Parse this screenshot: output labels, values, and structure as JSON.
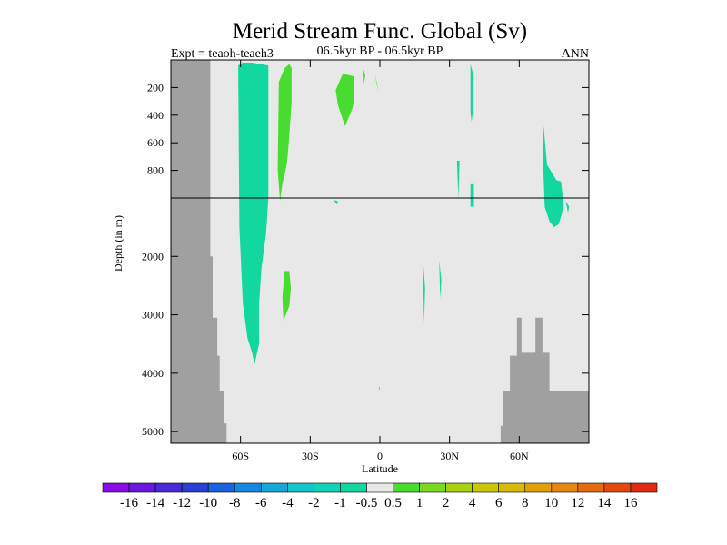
{
  "chart_data": {
    "type": "heatmap",
    "title": "Merid Stream Func. Global (Sv)",
    "subtitle_left": "Expt = teaoh-teaeh3",
    "subtitle_center": "06.5kyr BP - 06.5kyr BP",
    "subtitle_right": "ANN",
    "xlabel": "Latitude",
    "ylabel": "Depth (in m)",
    "xlim": [
      -90,
      90
    ],
    "x_ticks": [
      {
        "value": -60,
        "label": "60S"
      },
      {
        "value": -30,
        "label": "30S"
      },
      {
        "value": 0,
        "label": "0"
      },
      {
        "value": 30,
        "label": "30N"
      },
      {
        "value": 60,
        "label": "60N"
      }
    ],
    "upper_panel": {
      "ylim": [
        0,
        1000
      ],
      "y_ticks": [
        {
          "value": 200,
          "label": "200"
        },
        {
          "value": 400,
          "label": "400"
        },
        {
          "value": 600,
          "label": "600"
        },
        {
          "value": 800,
          "label": "800"
        }
      ]
    },
    "lower_panel": {
      "ylim": [
        1000,
        5200
      ],
      "y_ticks": [
        {
          "value": 2000,
          "label": "2000"
        },
        {
          "value": 3000,
          "label": "3000"
        },
        {
          "value": 4000,
          "label": "4000"
        },
        {
          "value": 5000,
          "label": "5000"
        }
      ]
    },
    "colorbar": {
      "labels": [
        "-16",
        "-14",
        "-12",
        "-10",
        "-8",
        "-6",
        "-4",
        "-2",
        "-1",
        "-0.5",
        "0.5",
        "1",
        "2",
        "4",
        "6",
        "8",
        "10",
        "12",
        "14",
        "16"
      ],
      "colors": [
        "#8a0de8",
        "#6a18e0",
        "#4a2ad8",
        "#2a3fd6",
        "#1a62df",
        "#1688e0",
        "#14a8d8",
        "#12c4cc",
        "#10d4b8",
        "#12d8a0",
        "#e8e8e8",
        "#48dc30",
        "#7ad820",
        "#a8d010",
        "#c8c808",
        "#d8b808",
        "#e0a008",
        "#e48810",
        "#e46c10",
        "#e44a10",
        "#e22a10"
      ]
    },
    "background_color": "#e8e8e8",
    "land_color": "#a0a0a0",
    "features": [
      {
        "type": "land",
        "lat": [
          -90,
          -73,
          -73,
          -72,
          -72,
          -70,
          -70,
          -69,
          -69,
          -67,
          -67,
          -66,
          -66,
          -90
        ],
        "depth": [
          0,
          0,
          2000,
          2000,
          3050,
          3050,
          3700,
          3700,
          4300,
          4300,
          4860,
          4860,
          5200,
          5200
        ]
      },
      {
        "type": "land",
        "lat": [
          52,
          52,
          53,
          53,
          56,
          56,
          59,
          59,
          61,
          61,
          64,
          64,
          67,
          67,
          70,
          70,
          73,
          73,
          78,
          78,
          90,
          90
        ],
        "depth": [
          5200,
          4900,
          4900,
          4300,
          4300,
          3700,
          3700,
          3050,
          3050,
          3650,
          3650,
          3650,
          3650,
          3050,
          3050,
          3650,
          3650,
          4300,
          4300,
          4300,
          4300,
          5200
        ]
      },
      {
        "type": "contour",
        "level": "-1 to -0.5",
        "lat": [
          -61,
          -59,
          -55,
          -48,
          -48,
          -49,
          -51,
          -52,
          -52,
          -54,
          -55,
          -57,
          -59,
          -60.5,
          -61
        ],
        "depth": [
          40,
          20,
          20,
          40,
          1000,
          1600,
          2200,
          2800,
          3500,
          3850,
          3650,
          3400,
          2800,
          1500,
          40
        ]
      },
      {
        "type": "contour",
        "level": "0.5 to 1",
        "lat": [
          -43.5,
          -41,
          -39,
          -38,
          -38,
          -39,
          -40,
          -42,
          -43,
          -44,
          -43.5
        ],
        "depth": [
          160,
          60,
          30,
          60,
          300,
          550,
          750,
          900,
          1050,
          800,
          160
        ]
      },
      {
        "type": "contour",
        "level": "0.5 to 1",
        "lat": [
          -41,
          -39,
          -38.3,
          -39,
          -40,
          -41.5,
          -42,
          -41
        ],
        "depth": [
          2250,
          2250,
          2550,
          2850,
          2950,
          3100,
          2700,
          2250
        ]
      },
      {
        "type": "contour",
        "level": "0.5 to 1",
        "lat": [
          -19,
          -16,
          -11,
          -11,
          -12,
          -15,
          -18,
          -19
        ],
        "depth": [
          220,
          100,
          120,
          290,
          360,
          480,
          330,
          220
        ]
      },
      {
        "type": "contour",
        "level": "0.5 to 1",
        "lat": [
          -7.2,
          -6.3,
          -6.8,
          -7.2
        ],
        "depth": [
          60,
          110,
          180,
          60
        ]
      },
      {
        "type": "contour",
        "level": "0.5 to 1",
        "lat": [
          -2,
          -0.5,
          -1.5,
          -2
        ],
        "depth": [
          110,
          230,
          170,
          110
        ]
      },
      {
        "type": "contour",
        "level": "-1 to -0.5",
        "lat": [
          -20,
          -18,
          -18.5,
          -20
        ],
        "depth": [
          1030,
          1060,
          1110,
          1030
        ]
      },
      {
        "type": "contour",
        "level": "-1 to -0.5",
        "lat": [
          18.5,
          19.5,
          19,
          18.5
        ],
        "depth": [
          2020,
          2550,
          3150,
          2020
        ]
      },
      {
        "type": "contour",
        "level": "-1 to -0.5",
        "lat": [
          25.5,
          26.5,
          26,
          25.5
        ],
        "depth": [
          2060,
          2420,
          2720,
          2060
        ]
      },
      {
        "type": "contour",
        "level": "-1 to -0.5",
        "lat": [
          39,
          40,
          40,
          39.5,
          39,
          39
        ],
        "depth": [
          30,
          90,
          380,
          450,
          380,
          30
        ]
      },
      {
        "type": "contour",
        "level": "-1 to -0.5",
        "lat": [
          33.2,
          34.3,
          33.8,
          33.2
        ],
        "depth": [
          730,
          730,
          1000,
          730
        ]
      },
      {
        "type": "contour",
        "level": "-1 to -0.5",
        "lat": [
          39,
          40.5,
          40.5,
          39,
          39
        ],
        "depth": [
          900,
          900,
          1150,
          1150,
          900
        ]
      },
      {
        "type": "contour",
        "level": "-1 to -0.5",
        "lat": [
          70,
          70.5,
          72,
          76,
          78,
          79,
          78.5,
          77,
          75,
          73,
          71,
          70
        ],
        "depth": [
          620,
          480,
          760,
          870,
          880,
          1050,
          1250,
          1450,
          1500,
          1400,
          1150,
          620
        ]
      },
      {
        "type": "contour",
        "level": "-1 to -0.5",
        "lat": [
          80,
          81.5,
          81,
          80
        ],
        "depth": [
          1050,
          1150,
          1250,
          1050
        ]
      },
      {
        "type": "contour",
        "level": "0.5 to 1",
        "lat": [
          -0.5,
          0,
          0,
          -0.5
        ],
        "depth": [
          4240,
          4240,
          4300,
          4240
        ]
      }
    ]
  }
}
